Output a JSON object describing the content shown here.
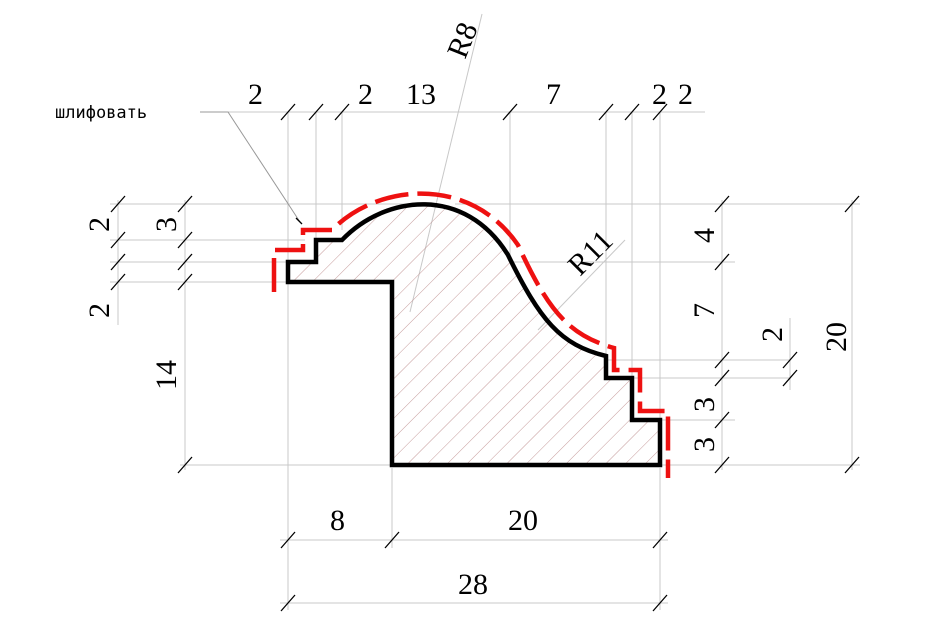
{
  "note": {
    "text": "шлифовать"
  },
  "radii": {
    "r_small": "R8",
    "r_large": "R11"
  },
  "top_dims": [
    "2",
    "2",
    "13",
    "7",
    "2",
    "2"
  ],
  "left_dims": {
    "top_a": "2",
    "top_b": "3",
    "middle": "2",
    "bottom": "14"
  },
  "right_dims": {
    "top": "4",
    "middle": "7",
    "step_a": "2",
    "step_b": "3",
    "step_c": "3",
    "total": "20"
  },
  "bottom_dims": {
    "left": "8",
    "right": "20",
    "total": "28"
  },
  "colors": {
    "profile": "#000000",
    "sanding": "#ee1111",
    "hatch": "#c09090",
    "extension": "#c8c8c8"
  }
}
